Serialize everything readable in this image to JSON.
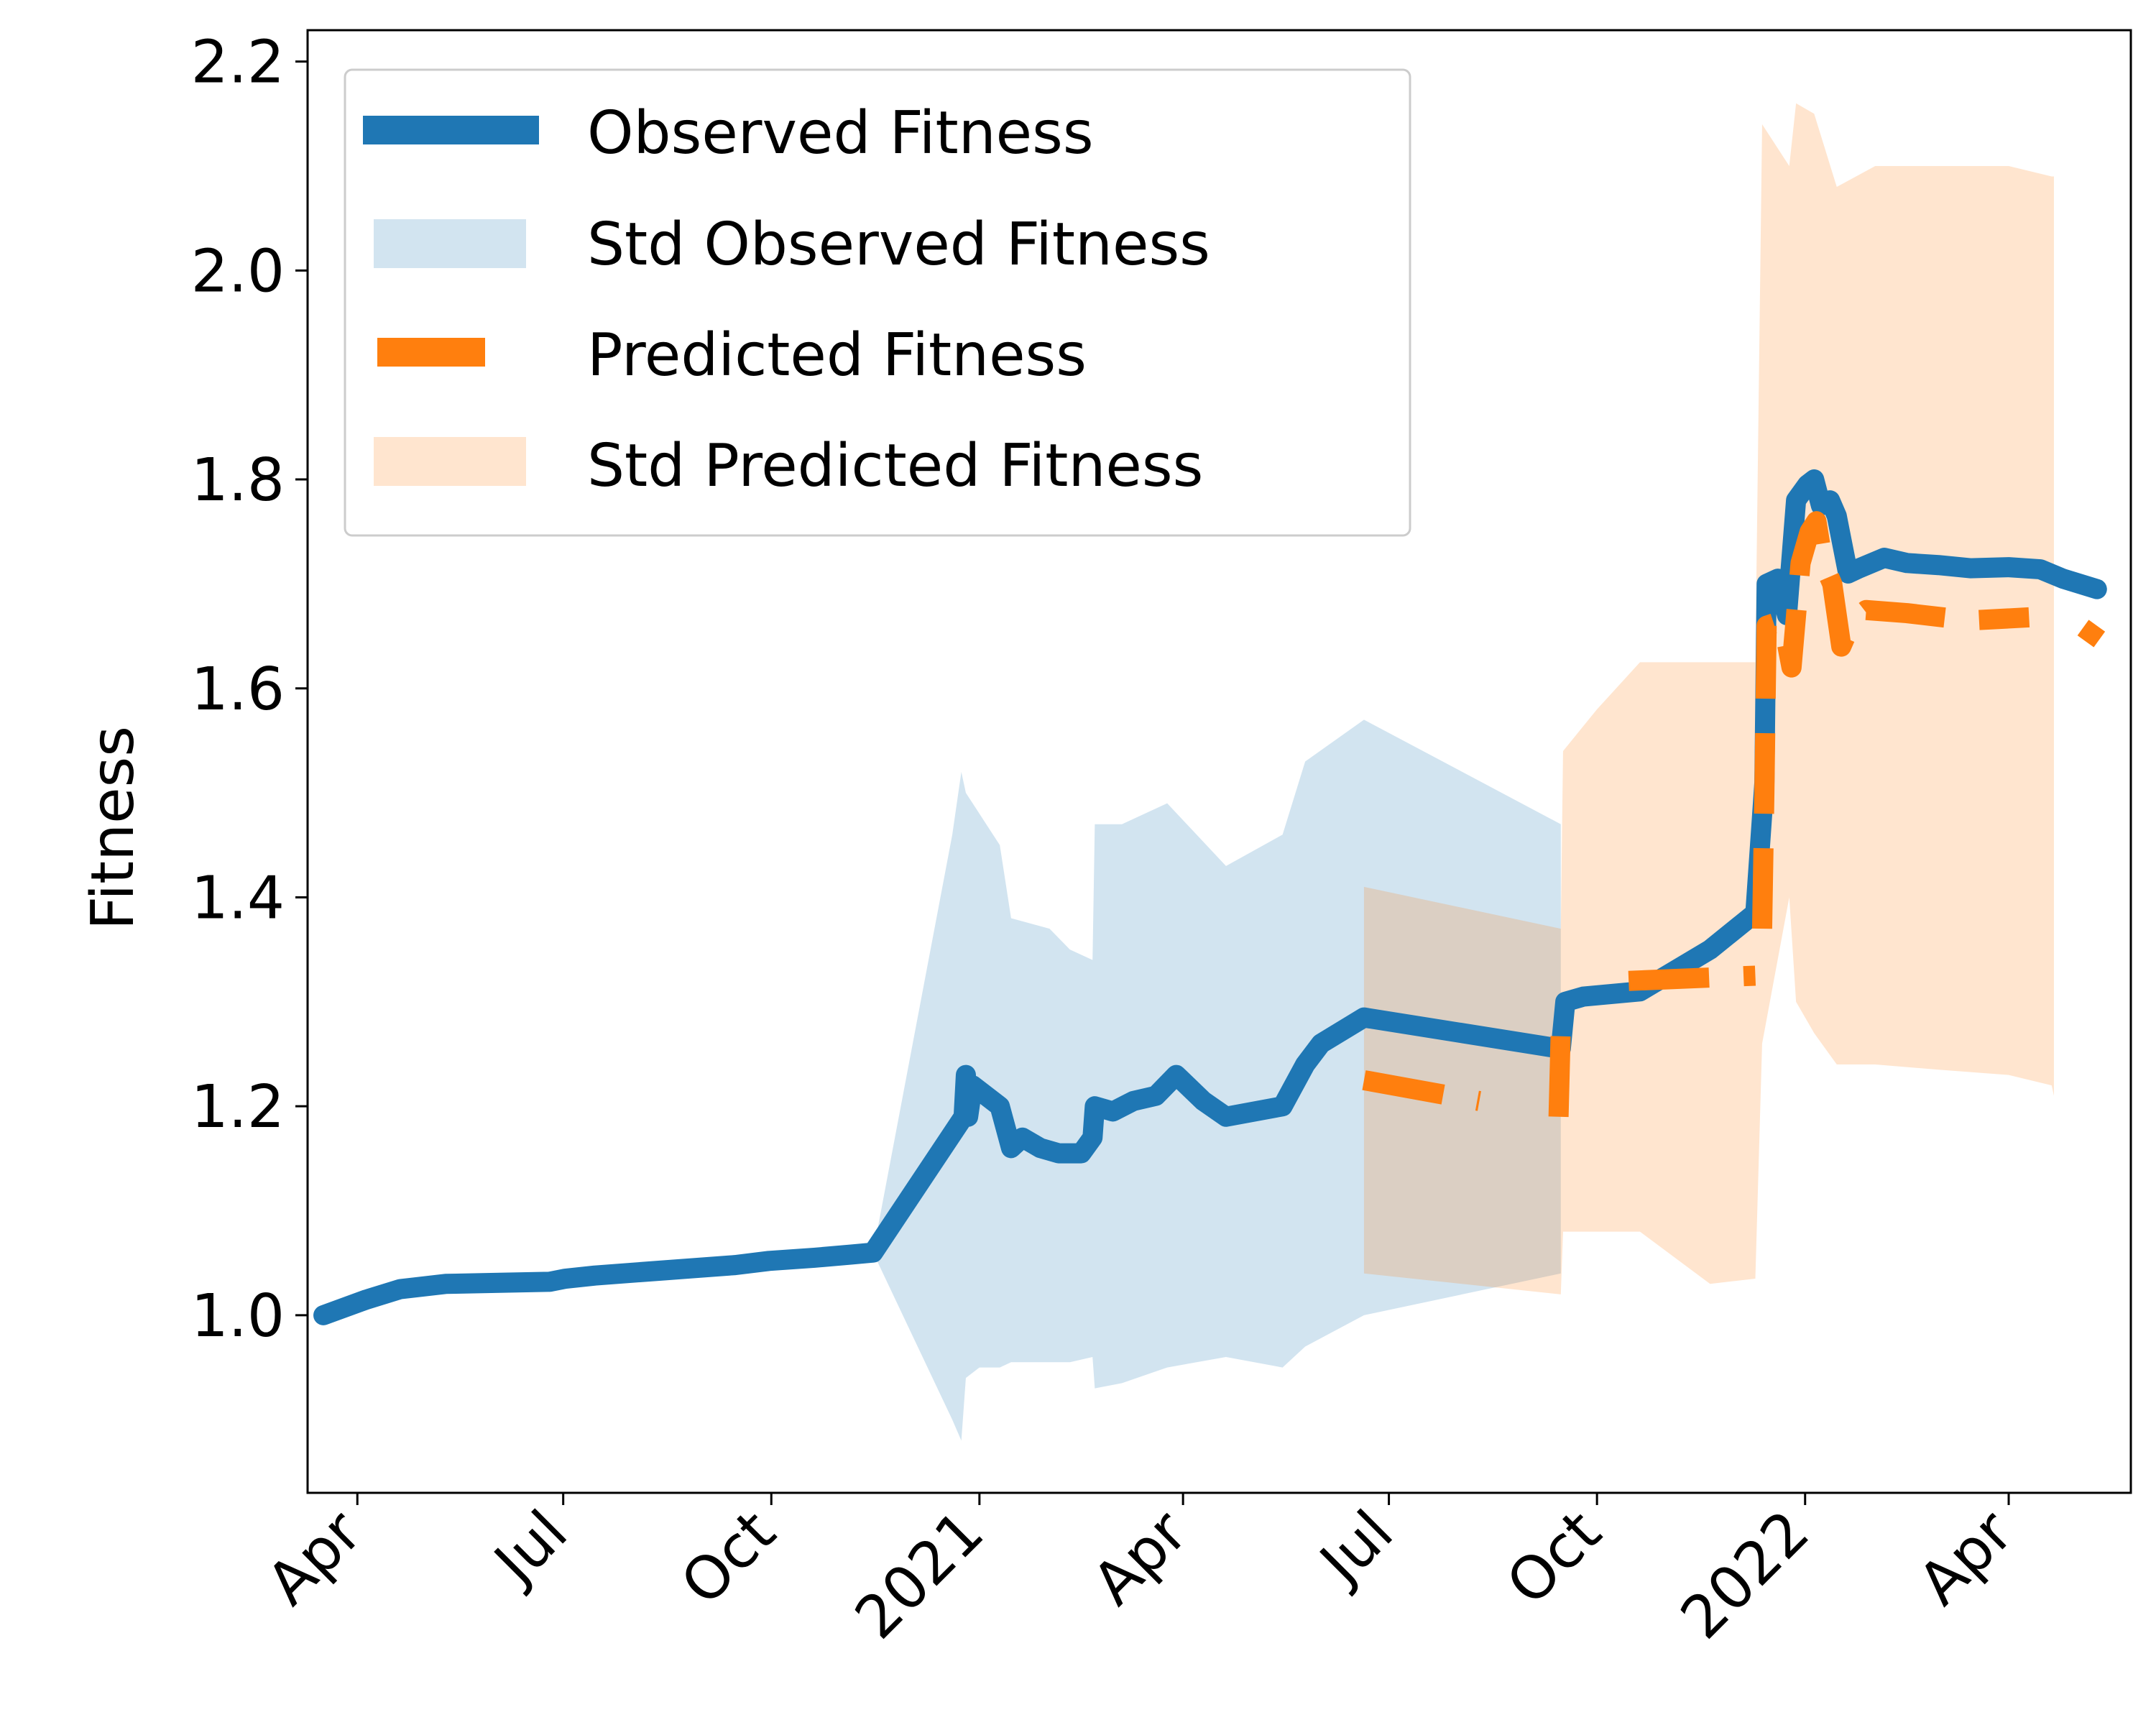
{
  "chart_data": {
    "type": "line",
    "title": "",
    "xlabel": "",
    "ylabel": "Fitness",
    "xlim": [
      "2020-03-10",
      "2022-05-25"
    ],
    "ylim": [
      0.83,
      2.23
    ],
    "x_ticks": [
      {
        "date": "2020-04-01",
        "label": "Apr"
      },
      {
        "date": "2020-07-01",
        "label": "Jul"
      },
      {
        "date": "2020-10-01",
        "label": "Oct"
      },
      {
        "date": "2021-01-01",
        "label": "2021"
      },
      {
        "date": "2021-04-01",
        "label": "Apr"
      },
      {
        "date": "2021-07-01",
        "label": "Jul"
      },
      {
        "date": "2021-10-01",
        "label": "Oct"
      },
      {
        "date": "2022-01-01",
        "label": "2022"
      },
      {
        "date": "2022-04-01",
        "label": "Apr"
      }
    ],
    "y_ticks": [
      {
        "value": 1.0,
        "label": "1.0"
      },
      {
        "value": 1.2,
        "label": "1.2"
      },
      {
        "value": 1.4,
        "label": "1.4"
      },
      {
        "value": 1.6,
        "label": "1.6"
      },
      {
        "value": 1.8,
        "label": "1.8"
      },
      {
        "value": 2.0,
        "label": "2.0"
      },
      {
        "value": 2.2,
        "label": "2.2"
      }
    ],
    "grid": false,
    "legend_position": "top-left",
    "series": [
      {
        "name": "Observed Fitness",
        "kind": "line",
        "style": "solid",
        "color": "#1f77b4",
        "points": [
          [
            "2020-03-17",
            1.0
          ],
          [
            "2020-04-05",
            1.015
          ],
          [
            "2020-04-20",
            1.025
          ],
          [
            "2020-05-10",
            1.03
          ],
          [
            "2020-06-01",
            1.031
          ],
          [
            "2020-06-25",
            1.032
          ],
          [
            "2020-07-02",
            1.035
          ],
          [
            "2020-07-15",
            1.038
          ],
          [
            "2020-08-15",
            1.043
          ],
          [
            "2020-09-15",
            1.048
          ],
          [
            "2020-09-30",
            1.052
          ],
          [
            "2020-10-20",
            1.055
          ],
          [
            "2020-11-05",
            1.058
          ],
          [
            "2020-11-15",
            1.06
          ],
          [
            "2020-12-25",
            1.19
          ],
          [
            "2020-12-26",
            1.23
          ],
          [
            "2020-12-27",
            1.19
          ],
          [
            "2020-12-29",
            1.22
          ],
          [
            "2021-01-10",
            1.2
          ],
          [
            "2021-01-15",
            1.16
          ],
          [
            "2021-01-20",
            1.17
          ],
          [
            "2021-01-28",
            1.16
          ],
          [
            "2021-02-05",
            1.155
          ],
          [
            "2021-02-15",
            1.155
          ],
          [
            "2021-02-20",
            1.17
          ],
          [
            "2021-02-21",
            1.2
          ],
          [
            "2021-03-01",
            1.195
          ],
          [
            "2021-03-10",
            1.205
          ],
          [
            "2021-03-20",
            1.21
          ],
          [
            "2021-03-29",
            1.23
          ],
          [
            "2021-04-10",
            1.205
          ],
          [
            "2021-04-20",
            1.19
          ],
          [
            "2021-05-15",
            1.2
          ],
          [
            "2021-05-25",
            1.24
          ],
          [
            "2021-06-01",
            1.26
          ],
          [
            "2021-06-20",
            1.285
          ],
          [
            "2021-09-15",
            1.255
          ],
          [
            "2021-09-17",
            1.3
          ],
          [
            "2021-09-25",
            1.305
          ],
          [
            "2021-10-20",
            1.31
          ],
          [
            "2021-11-20",
            1.35
          ],
          [
            "2021-12-10",
            1.385
          ],
          [
            "2021-12-14",
            1.51
          ],
          [
            "2021-12-15",
            1.7
          ],
          [
            "2021-12-20",
            1.705
          ],
          [
            "2021-12-24",
            1.67
          ],
          [
            "2021-12-28",
            1.78
          ],
          [
            "2022-01-02",
            1.795
          ],
          [
            "2022-01-05",
            1.8
          ],
          [
            "2022-01-08",
            1.775
          ],
          [
            "2022-01-12",
            1.78
          ],
          [
            "2022-01-15",
            1.765
          ],
          [
            "2022-01-20",
            1.71
          ],
          [
            "2022-01-25",
            1.715
          ],
          [
            "2022-02-05",
            1.725
          ],
          [
            "2022-02-15",
            1.72
          ],
          [
            "2022-03-01",
            1.718
          ],
          [
            "2022-03-15",
            1.715
          ],
          [
            "2022-04-01",
            1.716
          ],
          [
            "2022-04-15",
            1.714
          ],
          [
            "2022-04-25",
            1.705
          ],
          [
            "2022-05-10",
            1.695
          ]
        ]
      },
      {
        "name": "Std Observed Fitness",
        "kind": "band",
        "color": "#1f77b4",
        "opacity": 0.2,
        "points": [
          [
            "2020-03-17",
            1.0,
            1.0
          ],
          [
            "2020-05-01",
            1.03,
            1.03
          ],
          [
            "2020-11-15",
            1.06,
            1.06
          ],
          [
            "2020-12-20",
            1.46,
            0.9
          ],
          [
            "2020-12-24",
            1.52,
            0.88
          ],
          [
            "2020-12-26",
            1.5,
            0.94
          ],
          [
            "2021-01-01",
            1.48,
            0.95
          ],
          [
            "2021-01-10",
            1.45,
            0.95
          ],
          [
            "2021-01-15",
            1.38,
            0.955
          ],
          [
            "2021-02-01",
            1.37,
            0.955
          ],
          [
            "2021-02-10",
            1.35,
            0.955
          ],
          [
            "2021-02-20",
            1.34,
            0.96
          ],
          [
            "2021-02-21",
            1.47,
            0.93
          ],
          [
            "2021-03-05",
            1.47,
            0.935
          ],
          [
            "2021-03-25",
            1.49,
            0.95
          ],
          [
            "2021-04-20",
            1.43,
            0.96
          ],
          [
            "2021-05-15",
            1.46,
            0.95
          ],
          [
            "2021-05-25",
            1.53,
            0.97
          ],
          [
            "2021-06-20",
            1.57,
            1.0
          ],
          [
            "2021-09-15",
            1.47,
            1.04
          ]
        ]
      },
      {
        "name": "Predicted Fitness",
        "kind": "line",
        "style": "dashed",
        "color": "#ff7f0e",
        "segments": [
          [
            [
              "2021-06-20",
              1.225
            ],
            [
              "2021-08-10",
              1.205
            ]
          ],
          [
            [
              "2021-09-14",
              1.19
            ],
            [
              "2021-09-15",
              1.275
            ],
            [
              "2021-09-20",
              1.29
            ]
          ],
          [
            [
              "2021-10-15",
              1.32
            ],
            [
              "2021-12-10",
              1.325
            ]
          ],
          [
            [
              "2021-12-13",
              1.37
            ],
            [
              "2021-12-14",
              1.5
            ],
            [
              "2021-12-15",
              1.66
            ],
            [
              "2021-12-22",
              1.665
            ],
            [
              "2021-12-26",
              1.62
            ],
            [
              "2021-12-30",
              1.72
            ],
            [
              "2022-01-03",
              1.75
            ],
            [
              "2022-01-06",
              1.76
            ],
            [
              "2022-01-09",
              1.72
            ],
            [
              "2022-01-13",
              1.7
            ],
            [
              "2022-01-17",
              1.64
            ],
            [
              "2022-01-22",
              1.665
            ],
            [
              "2022-01-28",
              1.675
            ],
            [
              "2022-02-15",
              1.672
            ],
            [
              "2022-03-15",
              1.665
            ],
            [
              "2022-04-10",
              1.668
            ]
          ],
          [
            [
              "2022-05-05",
              1.645
            ],
            [
              "2022-05-10",
              1.66
            ]
          ]
        ]
      },
      {
        "name": "Std Predicted Fitness",
        "kind": "band",
        "color": "#ff7f0e",
        "opacity": 0.2,
        "points": [
          [
            "2021-06-20",
            1.41,
            1.04
          ],
          [
            "2021-09-15",
            1.37,
            1.02
          ],
          [
            "2021-09-16",
            1.54,
            1.08
          ],
          [
            "2021-10-01",
            1.58,
            1.08
          ],
          [
            "2021-10-20",
            1.625,
            1.08
          ],
          [
            "2021-11-20",
            1.625,
            1.03
          ],
          [
            "2021-12-10",
            1.625,
            1.035
          ],
          [
            "2021-12-13",
            2.14,
            1.26
          ],
          [
            "2021-12-25",
            2.1,
            1.4
          ],
          [
            "2021-12-28",
            2.16,
            1.3
          ],
          [
            "2022-01-05",
            2.15,
            1.27
          ],
          [
            "2022-01-15",
            2.08,
            1.24
          ],
          [
            "2022-02-01",
            2.1,
            1.24
          ],
          [
            "2022-03-01",
            2.1,
            1.235
          ],
          [
            "2022-04-01",
            2.1,
            1.23
          ],
          [
            "2022-04-20",
            2.09,
            1.22
          ],
          [
            "2022-04-21",
            2.09,
            1.21
          ]
        ]
      }
    ]
  },
  "legend": {
    "items": [
      {
        "label": "Observed Fitness"
      },
      {
        "label": "Std Observed Fitness"
      },
      {
        "label": "Predicted Fitness"
      },
      {
        "label": "Std Predicted Fitness"
      }
    ]
  }
}
